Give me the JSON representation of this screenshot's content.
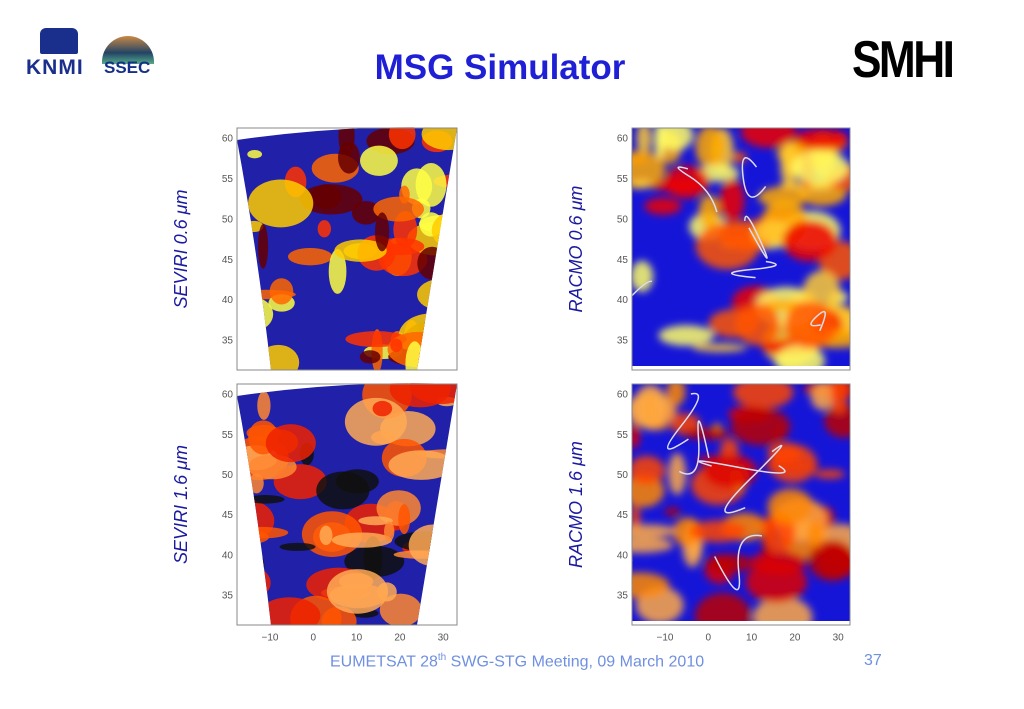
{
  "header": {
    "title": "MSG Simulator",
    "logos": [
      "KNMI",
      "SSEC",
      "SMHI"
    ]
  },
  "panels": [
    {
      "label": "SEVIRI 0.6 μm",
      "yticks": [
        "60",
        "55",
        "50",
        "45",
        "40",
        "35"
      ]
    },
    {
      "label": "RACMO 0.6 μm",
      "yticks": [
        "60",
        "55",
        "50",
        "45",
        "40",
        "35"
      ]
    },
    {
      "label": "SEVIRI 1.6 μm",
      "yticks": [
        "60",
        "55",
        "50",
        "45",
        "40",
        "35"
      ],
      "xticks": [
        "−10",
        "0",
        "10",
        "20",
        "30"
      ]
    },
    {
      "label": "RACMO 1.6 μm",
      "yticks": [
        "60",
        "55",
        "50",
        "45",
        "40",
        "35"
      ],
      "xticks": [
        "−10",
        "0",
        "10",
        "20",
        "30"
      ]
    }
  ],
  "footer": {
    "event": "EUMETSAT 28",
    "sup": "th",
    "rest": " SWG-STG Meeting, 09 March 2010",
    "page": "37"
  }
}
